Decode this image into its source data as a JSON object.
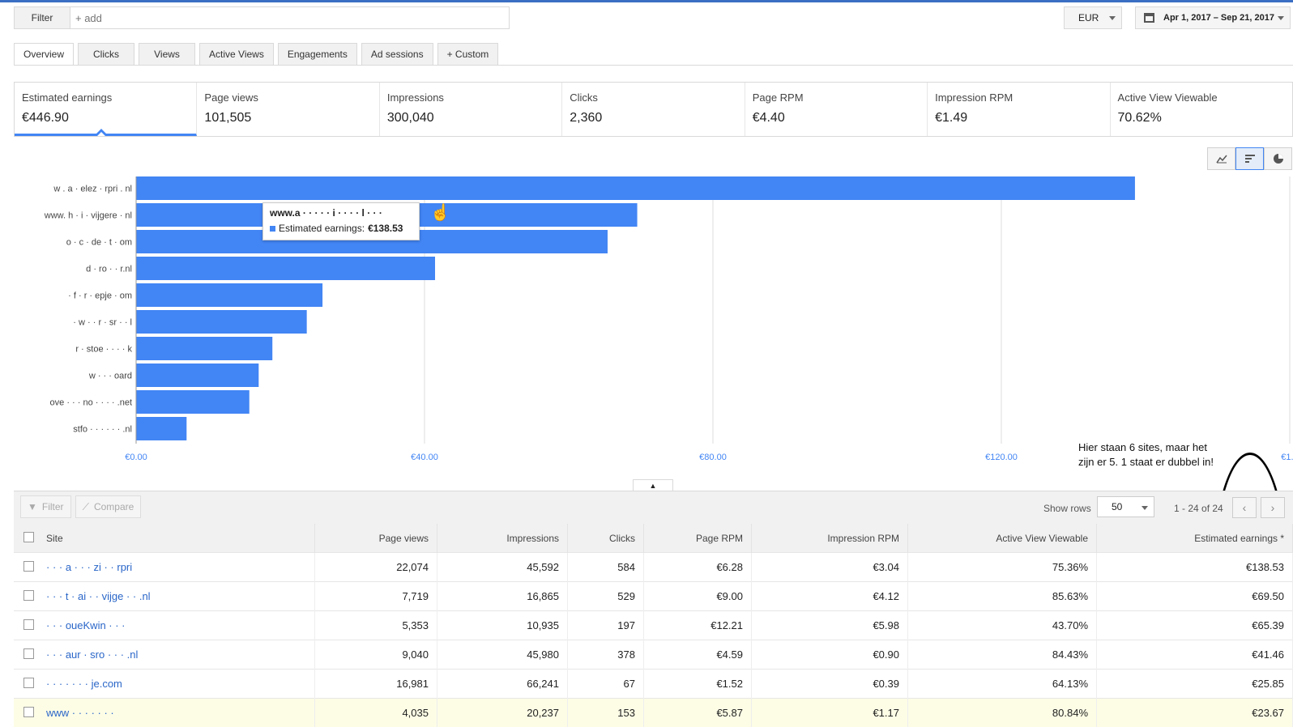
{
  "filter": {
    "label": "Filter",
    "placeholder": "+ add"
  },
  "currency": "EUR",
  "date_range": "Apr 1, 2017 – Sep 21, 2017",
  "tabs": [
    {
      "label": "Overview",
      "active": true
    },
    {
      "label": "Clicks"
    },
    {
      "label": "Views"
    },
    {
      "label": "Active Views"
    },
    {
      "label": "Engagements"
    },
    {
      "label": "Ad sessions"
    },
    {
      "label": "+  Custom"
    }
  ],
  "scorecards": [
    {
      "label": "Estimated earnings",
      "value": "€446.90"
    },
    {
      "label": "Page views",
      "value": "101,505"
    },
    {
      "label": "Impressions",
      "value": "300,040"
    },
    {
      "label": "Clicks",
      "value": "2,360"
    },
    {
      "label": "Page RPM",
      "value": "€4.40"
    },
    {
      "label": "Impression RPM",
      "value": "€1.49"
    },
    {
      "label": "Active View Viewable",
      "value": "70.62%"
    }
  ],
  "chart_view_icons": [
    "line-chart-icon",
    "bar-chart-icon",
    "pie-chart-icon"
  ],
  "chart_data": {
    "type": "bar",
    "orientation": "horizontal",
    "categories": [
      "w  .  a  ·  elez  · rpri  . nl",
      "www. h  ·  i · vijgere · nl",
      "o · c · de  · t · om",
      "d · ro · · r.nl",
      "· f · r · epje · om",
      "· w · · r · sr · · l",
      "r · stoe · · · · k",
      "w · · · oard",
      "ove · · · no · · · · .net",
      "stfo · · · · ·  · .nl"
    ],
    "series": [
      {
        "name": "Estimated earnings",
        "values": [
          138.53,
          69.5,
          65.39,
          41.46,
          25.85,
          23.67,
          18.9,
          17.0,
          15.7,
          7.0
        ]
      }
    ],
    "xlim": [
      0,
      160
    ],
    "xticks": [
      "€0.00",
      "€40.00",
      "€80.00",
      "€120.00",
      "€1..."
    ],
    "tick_values": [
      0,
      40,
      80,
      120,
      160
    ],
    "color": "#4285f4",
    "grid": true
  },
  "tooltip": {
    "title": "www.a · · · · · i · · · · l · · ·",
    "label": "Estimated earnings:",
    "value": "€138.53"
  },
  "annotation": "Hier staan 6 sites, maar het\nzijn er 5. 1 staat er dubbel in!",
  "table_toolbar": {
    "filter": "Filter",
    "compare": "Compare",
    "show_rows_label": "Show rows",
    "rows_value": "50",
    "range": "1 - 24 of 24"
  },
  "table": {
    "columns": [
      "Site",
      "Page views",
      "Impressions",
      "Clicks",
      "Page RPM",
      "Impression RPM",
      "Active View Viewable",
      "Estimated earnings *"
    ],
    "rows": [
      [
        "· · · a · · · zi · · rpri",
        "22,074",
        "45,592",
        "584",
        "€6.28",
        "€3.04",
        "75.36%",
        "€138.53"
      ],
      [
        "· · · t · ai · · vijge · · .nl",
        "7,719",
        "16,865",
        "529",
        "€9.00",
        "€4.12",
        "85.63%",
        "€69.50"
      ],
      [
        "· · · oueKwin · · ·",
        "5,353",
        "10,935",
        "197",
        "€12.21",
        "€5.98",
        "43.70%",
        "€65.39"
      ],
      [
        "· · · aur · sro · · · .nl",
        "9,040",
        "45,980",
        "378",
        "€4.59",
        "€0.90",
        "84.43%",
        "€41.46"
      ],
      [
        "· · · · · · · je.com",
        "16,981",
        "66,241",
        "67",
        "€1.52",
        "€0.39",
        "64.13%",
        "€25.85"
      ],
      [
        "www · · · · · · ·",
        "4,035",
        "20,237",
        "153",
        "€5.87",
        "€1.17",
        "80.84%",
        "€23.67"
      ]
    ]
  }
}
